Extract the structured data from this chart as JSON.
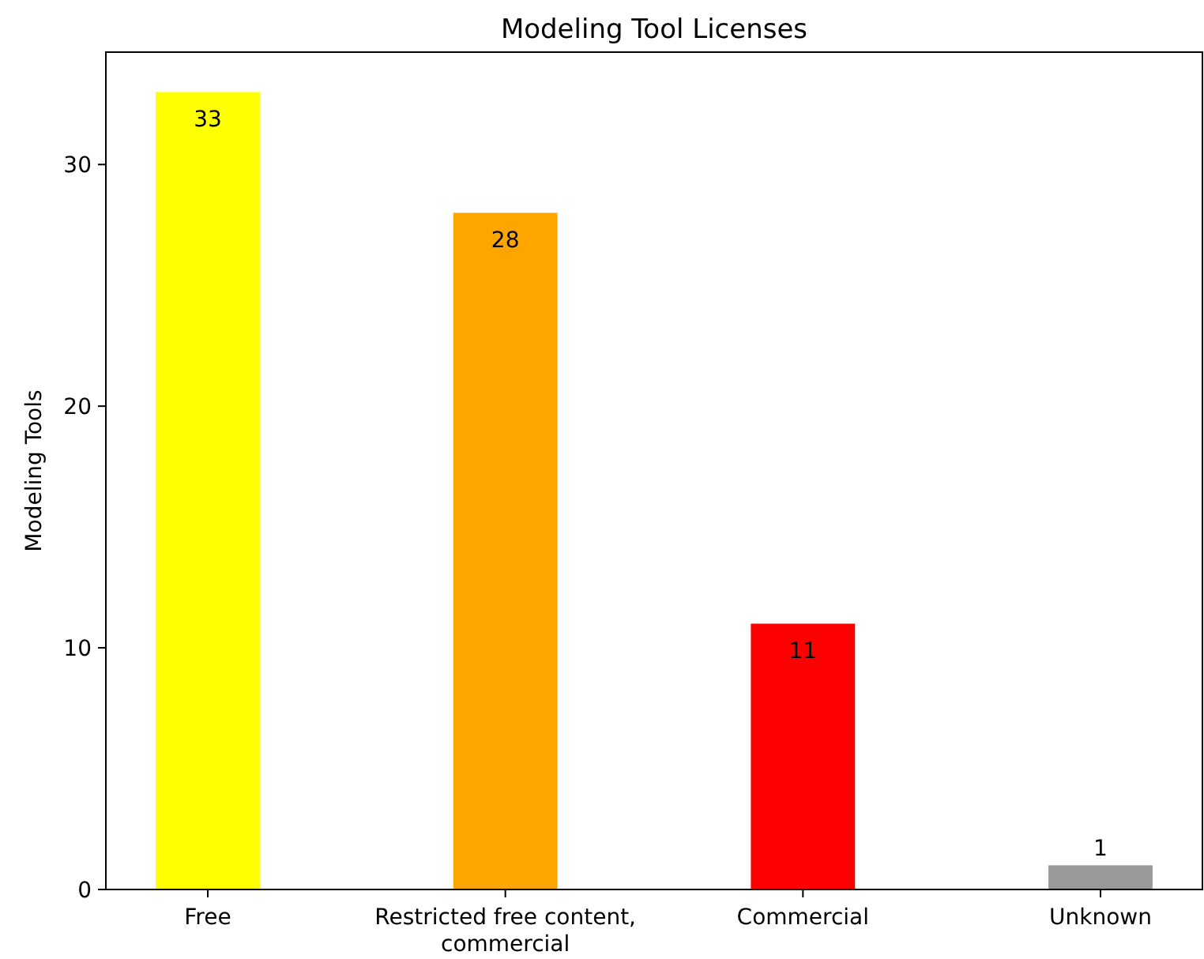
{
  "chart_data": {
    "type": "bar",
    "title": "Modeling Tool Licenses",
    "ylabel": "Modeling Tools",
    "categories": [
      "Free",
      "Restricted free content,\ncommercial",
      "Commercial",
      "Unknown"
    ],
    "values": [
      33,
      28,
      11,
      1
    ],
    "colors": [
      "#ffff00",
      "#ffa500",
      "#ff0000",
      "#999999"
    ],
    "ylim": [
      0,
      34.65
    ],
    "yticks": [
      0,
      10,
      20,
      30
    ],
    "data_labels": true,
    "grid": false
  }
}
